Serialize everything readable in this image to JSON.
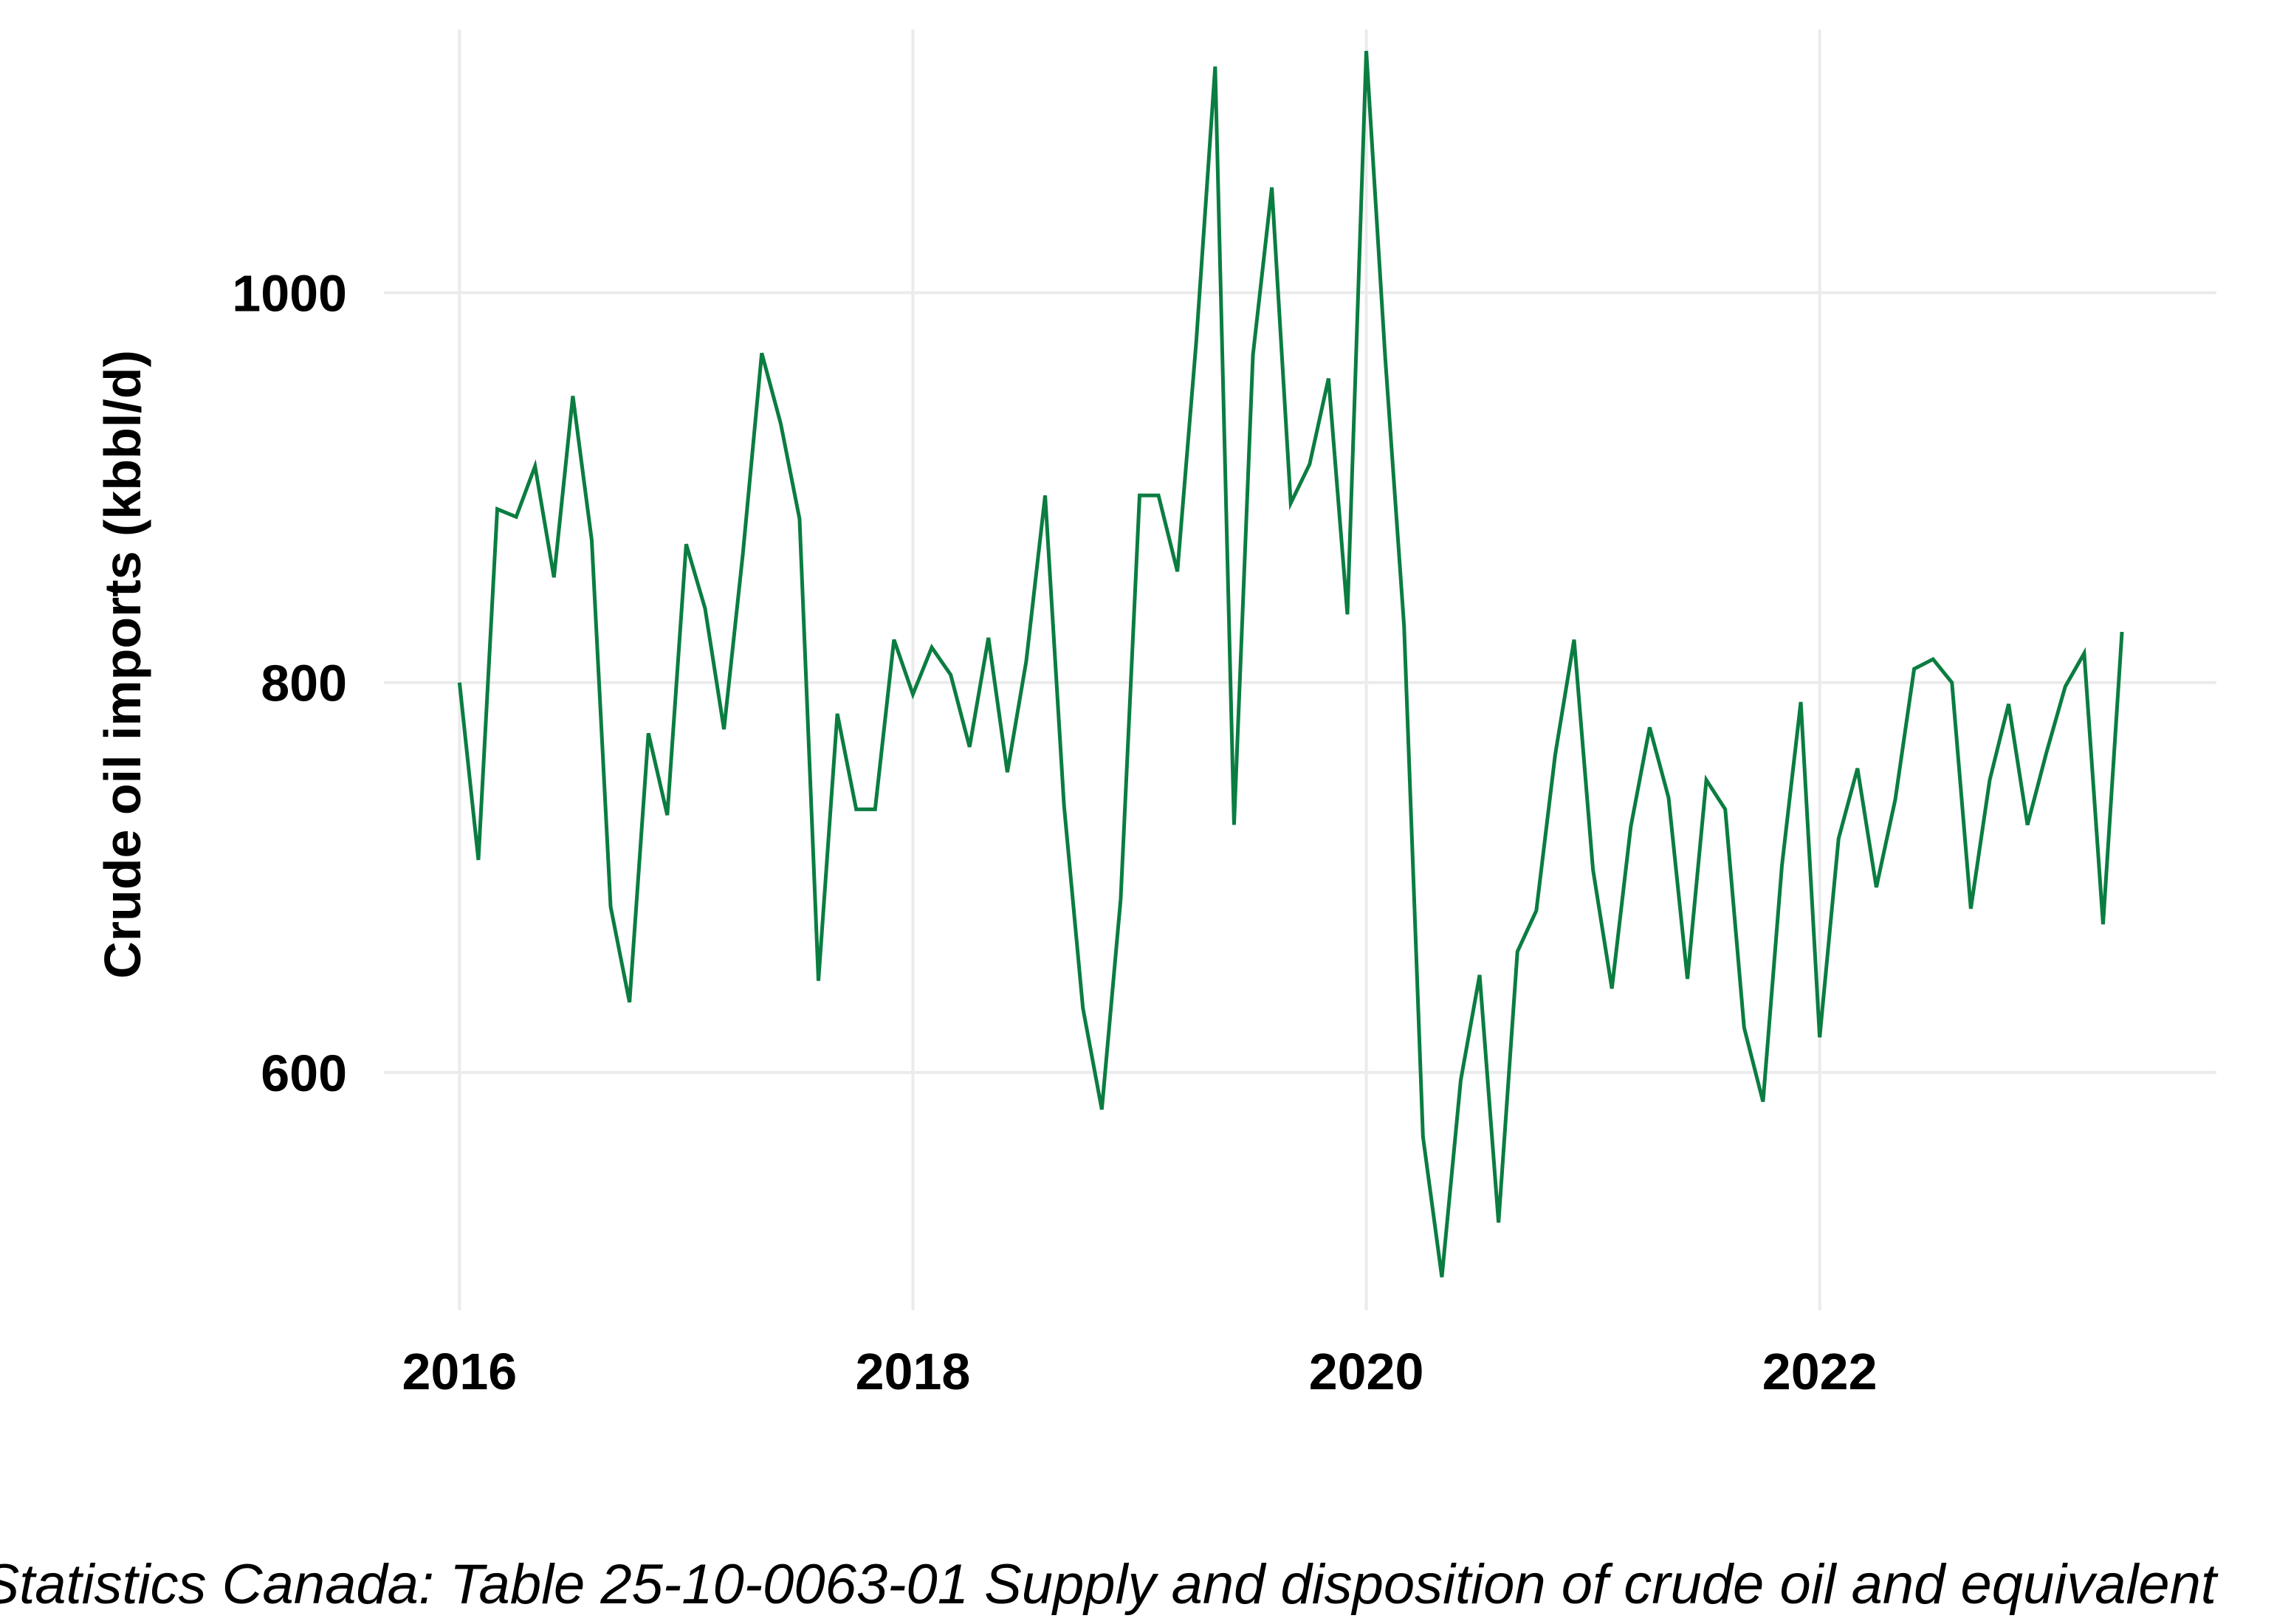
{
  "chart_data": {
    "type": "line",
    "title": "",
    "xlabel": "",
    "ylabel": "Crude oil imports (kbbl/d)",
    "caption": "Statistics Canada: Table 25-10-0063-01  Supply and disposition of crude oil and equivalent",
    "x_ticks": [
      "2016",
      "2018",
      "2020",
      "2022"
    ],
    "y_ticks": [
      600,
      800,
      1000
    ],
    "xlim": [
      "2015-09",
      "2023-10"
    ],
    "ylim": [
      478,
      1135
    ],
    "grid": true,
    "legend": "none",
    "line_color": "#0b7d41",
    "grid_color": "#ebebeb",
    "x": [
      "2016-01",
      "2016-02",
      "2016-03",
      "2016-04",
      "2016-05",
      "2016-06",
      "2016-07",
      "2016-08",
      "2016-09",
      "2016-10",
      "2016-11",
      "2016-12",
      "2017-01",
      "2017-02",
      "2017-03",
      "2017-04",
      "2017-05",
      "2017-06",
      "2017-07",
      "2017-08",
      "2017-09",
      "2017-10",
      "2017-11",
      "2017-12",
      "2018-01",
      "2018-02",
      "2018-03",
      "2018-04",
      "2018-05",
      "2018-06",
      "2018-07",
      "2018-08",
      "2018-09",
      "2018-10",
      "2018-11",
      "2018-12",
      "2019-01",
      "2019-02",
      "2019-03",
      "2019-04",
      "2019-05",
      "2019-06",
      "2019-07",
      "2019-08",
      "2019-09",
      "2019-10",
      "2019-11",
      "2019-12",
      "2020-01",
      "2020-02",
      "2020-03",
      "2020-04",
      "2020-05",
      "2020-06",
      "2020-07",
      "2020-08",
      "2020-09",
      "2020-10",
      "2020-11",
      "2020-12",
      "2021-01",
      "2021-02",
      "2021-03",
      "2021-04",
      "2021-05",
      "2021-06",
      "2021-07",
      "2021-08",
      "2021-09",
      "2021-10",
      "2021-11",
      "2021-12",
      "2022-01",
      "2022-02",
      "2022-03",
      "2022-04",
      "2022-05",
      "2022-06",
      "2022-07",
      "2022-08",
      "2022-09",
      "2022-10",
      "2022-11",
      "2022-12",
      "2023-01",
      "2023-02",
      "2023-03",
      "2023-04",
      "2023-05"
    ],
    "series": [
      {
        "values": [
          800,
          709,
          889,
          885,
          911,
          854,
          947,
          873,
          685,
          636,
          774,
          732,
          871,
          838,
          776,
          866,
          969,
          933,
          884,
          647,
          784,
          735,
          735,
          822,
          794,
          818,
          804,
          767,
          823,
          754,
          811,
          896,
          737,
          633,
          581,
          689,
          896,
          896,
          857,
          975,
          1116,
          727,
          968,
          1054,
          892,
          912,
          956,
          835,
          1124,
          967,
          829,
          567,
          495,
          596,
          650,
          523,
          662,
          683,
          763,
          822,
          704,
          643,
          726,
          777,
          741,
          648,
          750,
          735,
          623,
          585,
          706,
          790,
          618,
          720,
          756,
          695,
          740,
          807,
          812,
          800,
          684,
          750,
          789,
          727,
          764,
          798,
          815,
          676,
          826
        ]
      }
    ]
  }
}
